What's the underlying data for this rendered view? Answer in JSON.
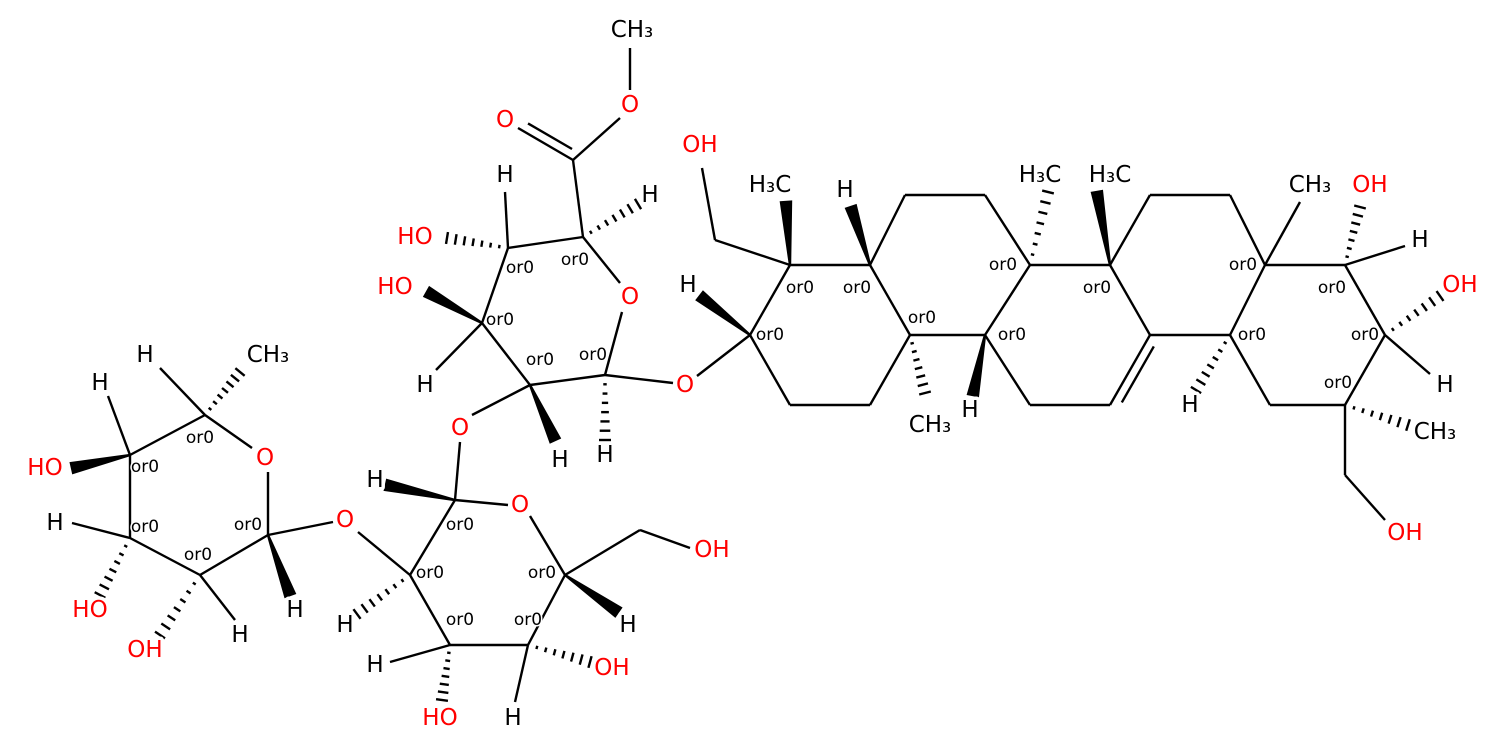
{
  "labels": [
    "CH₃",
    "H",
    "H",
    "HO",
    "O",
    "H",
    "HO",
    "OH",
    "H",
    "H",
    "O",
    "H",
    "O",
    "O",
    "H",
    "H",
    "HO",
    "H",
    "OH",
    "H",
    "OH",
    "O",
    "H",
    "O",
    "O",
    "CH₃",
    "H",
    "HO",
    "HO",
    "H",
    "H",
    "H",
    "O",
    "H",
    "OH",
    "H₃C",
    "H",
    "CH₃",
    "H",
    "H₃C",
    "H₃C",
    "CH₃",
    "OH",
    "H",
    "OH",
    "H",
    "CH₃",
    "OH",
    "H"
  ],
  "stereo": [
    "or0",
    "or0",
    "or0",
    "or0",
    "or0",
    "or0",
    "or0",
    "or0",
    "or0",
    "or0",
    "or0",
    "or0",
    "or0",
    "or0",
    "or0",
    "or0",
    "or0",
    "or0",
    "or0",
    "or0",
    "or0",
    "or0",
    "or0",
    "or0",
    "or0",
    "or0",
    "or0"
  ]
}
